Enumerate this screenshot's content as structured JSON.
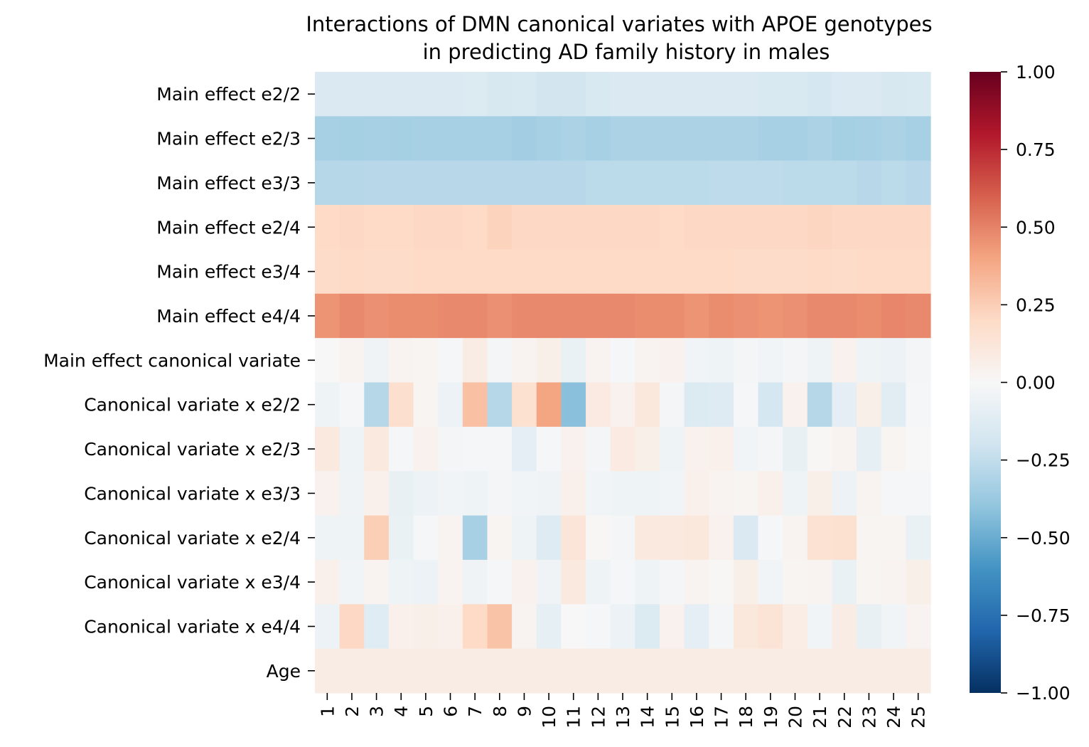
{
  "chart_data": {
    "type": "heatmap",
    "title": [
      "Interactions of DMN canonical variates with APOE genotypes",
      "in predicting AD family history in males"
    ],
    "xlabel": "",
    "ylabel": "",
    "x_tick_labels": [
      "1",
      "2",
      "3",
      "4",
      "5",
      "6",
      "7",
      "8",
      "9",
      "10",
      "11",
      "12",
      "13",
      "14",
      "15",
      "16",
      "17",
      "18",
      "19",
      "20",
      "21",
      "22",
      "23",
      "24",
      "25"
    ],
    "y_tick_labels": [
      "Main effect e2/2",
      "Main effect e2/3",
      "Main effect e3/3",
      "Main effect e2/4",
      "Main effect e3/4",
      "Main effect e4/4",
      "Main effect canonical variate",
      "Canonical variate x e2/2",
      "Canonical variate x e2/3",
      "Canonical variate x e3/3",
      "Canonical variate x e2/4",
      "Canonical variate x e3/4",
      "Canonical variate x e4/4",
      "Age"
    ],
    "colorbar": {
      "colormap": "RdBu_r",
      "vmin": -1.0,
      "vmax": 1.0,
      "tick_labels": [
        "1.00",
        "0.75",
        "0.50",
        "0.25",
        "0.00",
        "−0.25",
        "−0.50",
        "−0.75",
        "−1.00"
      ],
      "tick_values": [
        1.0,
        0.75,
        0.5,
        0.25,
        0.0,
        -0.25,
        -0.5,
        -0.75,
        -1.0
      ]
    },
    "values": [
      [
        -0.15,
        -0.15,
        -0.15,
        -0.15,
        -0.15,
        -0.15,
        -0.14,
        -0.17,
        -0.16,
        -0.19,
        -0.19,
        -0.16,
        -0.15,
        -0.15,
        -0.15,
        -0.15,
        -0.15,
        -0.15,
        -0.16,
        -0.16,
        -0.18,
        -0.15,
        -0.15,
        -0.17,
        -0.16
      ],
      [
        -0.33,
        -0.34,
        -0.33,
        -0.34,
        -0.33,
        -0.33,
        -0.33,
        -0.33,
        -0.35,
        -0.33,
        -0.32,
        -0.33,
        -0.32,
        -0.32,
        -0.32,
        -0.32,
        -0.32,
        -0.32,
        -0.33,
        -0.33,
        -0.32,
        -0.34,
        -0.33,
        -0.32,
        -0.33
      ],
      [
        -0.29,
        -0.29,
        -0.28,
        -0.28,
        -0.28,
        -0.28,
        -0.28,
        -0.28,
        -0.28,
        -0.28,
        -0.28,
        -0.27,
        -0.27,
        -0.27,
        -0.27,
        -0.27,
        -0.26,
        -0.26,
        -0.26,
        -0.27,
        -0.27,
        -0.27,
        -0.28,
        -0.27,
        -0.28
      ],
      [
        0.2,
        0.21,
        0.2,
        0.2,
        0.21,
        0.21,
        0.2,
        0.23,
        0.21,
        0.21,
        0.21,
        0.21,
        0.21,
        0.21,
        0.2,
        0.21,
        0.21,
        0.21,
        0.21,
        0.21,
        0.22,
        0.21,
        0.21,
        0.21,
        0.21
      ],
      [
        0.19,
        0.2,
        0.19,
        0.19,
        0.2,
        0.2,
        0.2,
        0.2,
        0.2,
        0.2,
        0.2,
        0.2,
        0.2,
        0.2,
        0.2,
        0.2,
        0.2,
        0.19,
        0.19,
        0.19,
        0.2,
        0.19,
        0.2,
        0.2,
        0.2
      ],
      [
        0.45,
        0.48,
        0.46,
        0.47,
        0.47,
        0.48,
        0.48,
        0.46,
        0.48,
        0.48,
        0.48,
        0.48,
        0.48,
        0.47,
        0.47,
        0.45,
        0.47,
        0.46,
        0.45,
        0.46,
        0.48,
        0.48,
        0.47,
        0.49,
        0.48
      ],
      [
        0.0,
        0.03,
        -0.04,
        0.03,
        0.02,
        -0.01,
        0.08,
        -0.02,
        0.03,
        0.06,
        -0.07,
        0.03,
        -0.01,
        0.03,
        0.04,
        -0.03,
        -0.05,
        -0.02,
        -0.03,
        -0.02,
        -0.05,
        0.04,
        -0.05,
        -0.06,
        -0.02
      ],
      [
        -0.05,
        -0.01,
        -0.29,
        0.17,
        0.02,
        -0.06,
        0.3,
        -0.29,
        0.16,
        0.4,
        -0.42,
        0.09,
        0.04,
        0.11,
        -0.02,
        -0.14,
        -0.13,
        -0.01,
        -0.18,
        0.04,
        -0.29,
        -0.1,
        0.06,
        -0.11,
        -0.01
      ],
      [
        0.1,
        -0.05,
        0.1,
        -0.01,
        0.04,
        -0.02,
        -0.01,
        -0.01,
        -0.1,
        -0.01,
        0.04,
        -0.02,
        0.09,
        0.06,
        -0.05,
        0.04,
        0.05,
        -0.03,
        -0.02,
        -0.08,
        0.01,
        0.03,
        -0.09,
        0.02,
        0.0
      ],
      [
        0.04,
        -0.04,
        0.05,
        -0.08,
        -0.06,
        -0.03,
        -0.05,
        -0.02,
        -0.03,
        -0.04,
        0.05,
        -0.03,
        -0.05,
        -0.05,
        -0.03,
        0.05,
        0.03,
        0.02,
        0.05,
        -0.05,
        0.06,
        -0.06,
        0.03,
        -0.01,
        -0.01
      ],
      [
        -0.05,
        -0.05,
        0.25,
        -0.07,
        -0.01,
        0.03,
        -0.33,
        0.02,
        -0.05,
        -0.13,
        0.13,
        0.01,
        -0.02,
        0.1,
        0.1,
        0.11,
        0.04,
        -0.15,
        -0.01,
        0.03,
        0.15,
        0.16,
        0.02,
        0.02,
        -0.07
      ],
      [
        0.05,
        -0.03,
        0.03,
        -0.05,
        -0.06,
        0.03,
        -0.04,
        -0.01,
        0.04,
        -0.04,
        0.1,
        -0.05,
        -0.01,
        -0.05,
        -0.02,
        0.03,
        0.01,
        0.06,
        -0.03,
        0.02,
        0.03,
        -0.07,
        0.02,
        0.03,
        0.06
      ],
      [
        -0.06,
        0.21,
        -0.12,
        0.05,
        0.06,
        0.05,
        0.2,
        0.29,
        0.03,
        -0.09,
        0.0,
        -0.01,
        -0.06,
        -0.14,
        0.04,
        -0.1,
        -0.02,
        0.11,
        0.14,
        0.07,
        -0.03,
        0.08,
        -0.08,
        -0.03,
        0.03
      ]
    ],
    "age_row_value": 0.08
  }
}
